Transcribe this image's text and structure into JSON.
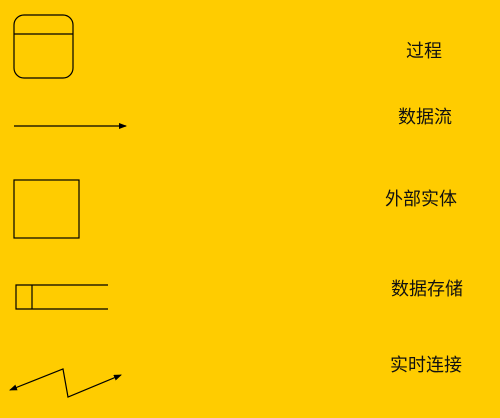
{
  "legend": {
    "items": [
      {
        "symbol": "rounded-rectangle-with-header",
        "label": "过程"
      },
      {
        "symbol": "arrow-line",
        "label": "数据流"
      },
      {
        "symbol": "square",
        "label": "外部实体"
      },
      {
        "symbol": "open-ended-rectangle",
        "label": "数据存储"
      },
      {
        "symbol": "zigzag-double-arrow",
        "label": "实时连接"
      }
    ]
  },
  "colors": {
    "background": "#FFCC00",
    "stroke": "#000000",
    "text": "#111111"
  }
}
